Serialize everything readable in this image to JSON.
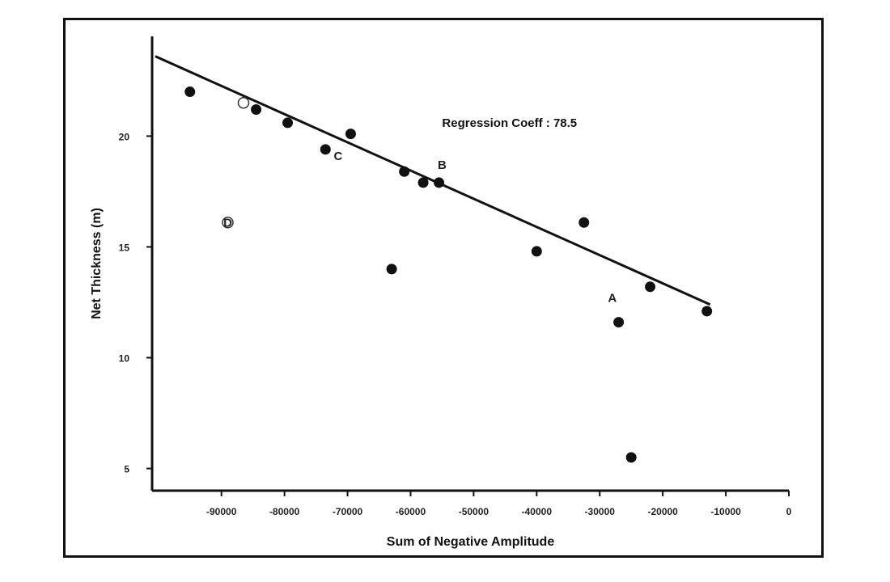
{
  "chart_data": {
    "type": "scatter",
    "title": "",
    "xlabel": "Sum of Negative Amplitude",
    "ylabel": "Net Thickness (m)",
    "xlim": [
      -101000,
      0
    ],
    "ylim": [
      4,
      24.5
    ],
    "x_ticks": [
      -90000,
      -80000,
      -70000,
      -60000,
      -50000,
      -40000,
      -30000,
      -20000,
      -10000,
      0
    ],
    "x_tick_labels": [
      "-90000",
      "-80000",
      "-70000",
      "-60000",
      "-50000",
      "-40000",
      "-30000",
      "-20000",
      "-10000",
      "0"
    ],
    "y_ticks": [
      5,
      10,
      15,
      20
    ],
    "y_tick_labels": [
      "5",
      "10",
      "15",
      "20"
    ],
    "grid": false,
    "legend": "none",
    "series": [
      {
        "points": [
          {
            "x": -95000,
            "y": 22.0
          },
          {
            "x": -84500,
            "y": 21.2
          },
          {
            "x": -79500,
            "y": 20.6
          },
          {
            "x": -73500,
            "y": 19.4
          },
          {
            "x": -69500,
            "y": 20.1
          },
          {
            "x": -63000,
            "y": 14.0
          },
          {
            "x": -61000,
            "y": 18.4
          },
          {
            "x": -58000,
            "y": 17.9
          },
          {
            "x": -55500,
            "y": 17.9
          },
          {
            "x": -40000,
            "y": 14.8
          },
          {
            "x": -32500,
            "y": 16.1
          },
          {
            "x": -27000,
            "y": 11.6
          },
          {
            "x": -25000,
            "y": 5.5
          },
          {
            "x": -22000,
            "y": 13.2
          },
          {
            "x": -13000,
            "y": 12.1
          }
        ]
      },
      {
        "marker": "open",
        "points": [
          {
            "x": -86500,
            "y": 21.5
          },
          {
            "x": -89000,
            "y": 16.1
          }
        ]
      }
    ],
    "regression_line": {
      "start": {
        "x": -100500,
        "y": 23.6
      },
      "end": {
        "x": -12500,
        "y": 12.4
      }
    },
    "annotations": [
      {
        "text": "Regression Coeff : 78.5",
        "x": -55000,
        "y": 20.6
      },
      {
        "text": "A",
        "x": -28000,
        "y": 12.7
      },
      {
        "text": "B",
        "x": -55000,
        "y": 18.7
      },
      {
        "text": "C",
        "x": -71500,
        "y": 19.1
      },
      {
        "text": "D",
        "x": -89000,
        "y": 16.1
      }
    ]
  }
}
